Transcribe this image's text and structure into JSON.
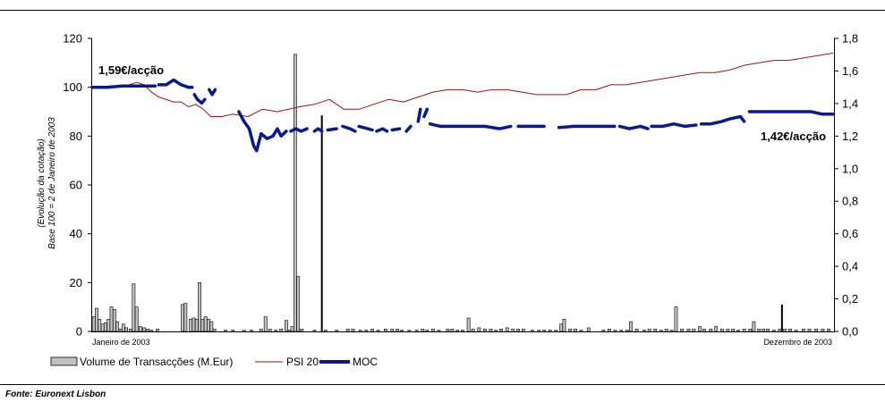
{
  "chart_data": {
    "type": "bar",
    "y_left_ticks": [
      "0",
      "20",
      "40",
      "60",
      "80",
      "100",
      "120"
    ],
    "y_left_range": [
      0,
      120
    ],
    "y_right_ticks": [
      "0,0",
      "0,2",
      "0,4",
      "0,6",
      "0,8",
      "1,0",
      "1,2",
      "1,4",
      "1,6",
      "1,8"
    ],
    "y_right_range": [
      0,
      1.8
    ],
    "y_left_label_line1": "(Evolução da cotação)",
    "y_left_label_line2": "Base 100 = 2 de Janeiro de 2003",
    "x_start_label": "Janeiro de 2003",
    "x_end_label": "Dezembro de 2003",
    "annotation_start": "1,59€/acção",
    "annotation_end": "1,42€/acção",
    "legend": [
      "Volume de Transacções (M.Eur)",
      "PSI 20",
      "MOC"
    ],
    "source": "Fonte: Euronext Lisbon",
    "colors": {
      "psi20": "#8b1a1a",
      "moc": "#0a1a8c",
      "bars": "#c0c0c0"
    },
    "series": [
      {
        "name": "Volume de Transacções (M.Eur)",
        "axis": "left",
        "points": [
          [
            0.002,
            6
          ],
          [
            0.006,
            9.5
          ],
          [
            0.01,
            5
          ],
          [
            0.014,
            3
          ],
          [
            0.018,
            3.5
          ],
          [
            0.022,
            5
          ],
          [
            0.026,
            10
          ],
          [
            0.03,
            9
          ],
          [
            0.034,
            4
          ],
          [
            0.038,
            1
          ],
          [
            0.042,
            3
          ],
          [
            0.046,
            1.5
          ],
          [
            0.052,
            1
          ],
          [
            0.056,
            19.5
          ],
          [
            0.06,
            10
          ],
          [
            0.065,
            2
          ],
          [
            0.07,
            1.5
          ],
          [
            0.075,
            1
          ],
          [
            0.08,
            0.5
          ],
          [
            0.088,
            1
          ],
          [
            0.122,
            11
          ],
          [
            0.126,
            11.5
          ],
          [
            0.133,
            5
          ],
          [
            0.137,
            5.5
          ],
          [
            0.141,
            5
          ],
          [
            0.145,
            20
          ],
          [
            0.149,
            5
          ],
          [
            0.153,
            6
          ],
          [
            0.157,
            5
          ],
          [
            0.161,
            4
          ],
          [
            0.165,
            1
          ],
          [
            0.18,
            0.5
          ],
          [
            0.19,
            0.5
          ],
          [
            0.205,
            0.5
          ],
          [
            0.215,
            0.5
          ],
          [
            0.228,
            1
          ],
          [
            0.234,
            6
          ],
          [
            0.24,
            1
          ],
          [
            0.248,
            0.5
          ],
          [
            0.255,
            1
          ],
          [
            0.262,
            4.5
          ],
          [
            0.266,
            0.5
          ],
          [
            0.27,
            2
          ],
          [
            0.274,
            113.5
          ],
          [
            0.278,
            22.5
          ],
          [
            0.283,
            1
          ],
          [
            0.3,
            0.5
          ],
          [
            0.315,
            0.5
          ],
          [
            0.33,
            0.5
          ],
          [
            0.345,
            1
          ],
          [
            0.352,
            1
          ],
          [
            0.362,
            0.5
          ],
          [
            0.37,
            0.5
          ],
          [
            0.378,
            1
          ],
          [
            0.386,
            0.5
          ],
          [
            0.396,
            1
          ],
          [
            0.405,
            1
          ],
          [
            0.412,
            1
          ],
          [
            0.418,
            0.5
          ],
          [
            0.428,
            0.5
          ],
          [
            0.438,
            0.5
          ],
          [
            0.446,
            1
          ],
          [
            0.452,
            0.5
          ],
          [
            0.46,
            1
          ],
          [
            0.468,
            0.5
          ],
          [
            0.48,
            1
          ],
          [
            0.486,
            1
          ],
          [
            0.493,
            0.5
          ],
          [
            0.5,
            0.5
          ],
          [
            0.508,
            5.5
          ],
          [
            0.514,
            1
          ],
          [
            0.522,
            1.5
          ],
          [
            0.53,
            1
          ],
          [
            0.538,
            1
          ],
          [
            0.545,
            0.5
          ],
          [
            0.552,
            1
          ],
          [
            0.56,
            1.5
          ],
          [
            0.568,
            1
          ],
          [
            0.575,
            1
          ],
          [
            0.582,
            1
          ],
          [
            0.594,
            0.5
          ],
          [
            0.603,
            0.5
          ],
          [
            0.61,
            0.5
          ],
          [
            0.618,
            0.5
          ],
          [
            0.626,
            0.5
          ],
          [
            0.633,
            3
          ],
          [
            0.637,
            5
          ],
          [
            0.645,
            1
          ],
          [
            0.652,
            1
          ],
          [
            0.66,
            0.5
          ],
          [
            0.67,
            1.5
          ],
          [
            0.69,
            0.5
          ],
          [
            0.698,
            1
          ],
          [
            0.706,
            0.5
          ],
          [
            0.714,
            0.5
          ],
          [
            0.722,
            0.5
          ],
          [
            0.727,
            4
          ],
          [
            0.735,
            1
          ],
          [
            0.745,
            0.5
          ],
          [
            0.752,
            1
          ],
          [
            0.76,
            1
          ],
          [
            0.768,
            0.5
          ],
          [
            0.775,
            1
          ],
          [
            0.782,
            0.5
          ],
          [
            0.788,
            10
          ],
          [
            0.796,
            1
          ],
          [
            0.805,
            1
          ],
          [
            0.812,
            1
          ],
          [
            0.82,
            2
          ],
          [
            0.826,
            1
          ],
          [
            0.835,
            1
          ],
          [
            0.842,
            2
          ],
          [
            0.85,
            1
          ],
          [
            0.858,
            1
          ],
          [
            0.865,
            1
          ],
          [
            0.872,
            0.5
          ],
          [
            0.88,
            1
          ],
          [
            0.888,
            1
          ],
          [
            0.893,
            4
          ],
          [
            0.9,
            1
          ],
          [
            0.906,
            1
          ],
          [
            0.912,
            1
          ],
          [
            0.92,
            0.5
          ],
          [
            0.928,
            1
          ],
          [
            0.935,
            1
          ],
          [
            0.942,
            1
          ],
          [
            0.95,
            0.5
          ],
          [
            0.96,
            1
          ],
          [
            0.968,
            1
          ],
          [
            0.977,
            1
          ],
          [
            0.986,
            1
          ],
          [
            0.994,
            1
          ]
        ]
      },
      {
        "name": "Volume de Transacções (M.Eur) dark",
        "axis": "left",
        "points": [
          [
            0.31,
            88.5
          ],
          [
            0.931,
            11
          ]
        ]
      },
      {
        "name": "PSI 20",
        "axis": "left",
        "points": [
          [
            0.0,
            100
          ],
          [
            0.03,
            100
          ],
          [
            0.05,
            101
          ],
          [
            0.06,
            102
          ],
          [
            0.07,
            101
          ],
          [
            0.08,
            98
          ],
          [
            0.09,
            96
          ],
          [
            0.11,
            94
          ],
          [
            0.12,
            94
          ],
          [
            0.13,
            92
          ],
          [
            0.14,
            93
          ],
          [
            0.15,
            91
          ],
          [
            0.16,
            88
          ],
          [
            0.175,
            88
          ],
          [
            0.19,
            89
          ],
          [
            0.21,
            88
          ],
          [
            0.23,
            91
          ],
          [
            0.25,
            90
          ],
          [
            0.265,
            91
          ],
          [
            0.28,
            92
          ],
          [
            0.3,
            93
          ],
          [
            0.32,
            95
          ],
          [
            0.34,
            91
          ],
          [
            0.36,
            91
          ],
          [
            0.38,
            93
          ],
          [
            0.4,
            95
          ],
          [
            0.42,
            94
          ],
          [
            0.44,
            96
          ],
          [
            0.46,
            98
          ],
          [
            0.48,
            99
          ],
          [
            0.5,
            99
          ],
          [
            0.52,
            98
          ],
          [
            0.54,
            99
          ],
          [
            0.56,
            99
          ],
          [
            0.58,
            98
          ],
          [
            0.6,
            97
          ],
          [
            0.62,
            97
          ],
          [
            0.64,
            97
          ],
          [
            0.66,
            99
          ],
          [
            0.68,
            99
          ],
          [
            0.7,
            101
          ],
          [
            0.72,
            101
          ],
          [
            0.74,
            102
          ],
          [
            0.76,
            103
          ],
          [
            0.78,
            104
          ],
          [
            0.8,
            105
          ],
          [
            0.82,
            106
          ],
          [
            0.84,
            106
          ],
          [
            0.86,
            107
          ],
          [
            0.88,
            109
          ],
          [
            0.9,
            110
          ],
          [
            0.92,
            111
          ],
          [
            0.94,
            111
          ],
          [
            0.96,
            112
          ],
          [
            0.98,
            113
          ],
          [
            1.0,
            114
          ]
        ]
      },
      {
        "name": "MOC",
        "axis": "left",
        "segments": [
          [
            [
              0.0,
              100
            ],
            [
              0.02,
              100
            ],
            [
              0.04,
              100.5
            ],
            [
              0.06,
              100.5
            ],
            [
              0.085,
              100.5
            ]
          ],
          [
            [
              0.09,
              101
            ],
            [
              0.1,
              101
            ],
            [
              0.11,
              103
            ],
            [
              0.12,
              101
            ],
            [
              0.13,
              100
            ],
            [
              0.135,
              100
            ]
          ],
          [
            [
              0.138,
              97
            ],
            [
              0.142,
              95
            ],
            [
              0.148,
              93.5
            ],
            [
              0.152,
              95
            ]
          ],
          [
            [
              0.158,
              99
            ],
            [
              0.162,
              97
            ],
            [
              0.166,
              99
            ]
          ],
          [
            [
              0.198,
              90
            ],
            [
              0.205,
              86
            ],
            [
              0.212,
              83
            ],
            [
              0.218,
              76
            ],
            [
              0.222,
              74
            ],
            [
              0.228,
              81
            ],
            [
              0.236,
              79
            ],
            [
              0.244,
              80
            ],
            [
              0.25,
              83
            ],
            [
              0.255,
              80
            ],
            [
              0.262,
              82
            ]
          ],
          [
            [
              0.268,
              82
            ],
            [
              0.275,
              83
            ],
            [
              0.282,
              82
            ],
            [
              0.29,
              83
            ]
          ],
          [
            [
              0.3,
              82
            ],
            [
              0.305,
              83
            ],
            [
              0.31,
              82
            ]
          ],
          [
            [
              0.318,
              82.5
            ],
            [
              0.33,
              83
            ]
          ],
          [
            [
              0.338,
              84
            ],
            [
              0.348,
              83
            ],
            [
              0.355,
              82
            ]
          ],
          [
            [
              0.36,
              84
            ],
            [
              0.372,
              83
            ],
            [
              0.378,
              82.5
            ]
          ],
          [
            [
              0.384,
              82
            ],
            [
              0.392,
              83
            ],
            [
              0.398,
              82
            ]
          ],
          [
            [
              0.405,
              82.5
            ],
            [
              0.415,
              83
            ]
          ],
          [
            [
              0.424,
              82
            ],
            [
              0.43,
              84
            ]
          ],
          [
            [
              0.44,
              86
            ],
            [
              0.443,
              91
            ]
          ],
          [
            [
              0.448,
              88
            ],
            [
              0.452,
              91
            ]
          ],
          [
            [
              0.456,
              85
            ],
            [
              0.47,
              84
            ],
            [
              0.49,
              84
            ],
            [
              0.51,
              84
            ],
            [
              0.53,
              84
            ],
            [
              0.55,
              83
            ],
            [
              0.565,
              84
            ]
          ],
          [
            [
              0.575,
              84
            ],
            [
              0.59,
              84
            ],
            [
              0.61,
              84
            ]
          ],
          [
            [
              0.63,
              83.5
            ],
            [
              0.65,
              84
            ],
            [
              0.67,
              84
            ],
            [
              0.69,
              84
            ],
            [
              0.705,
              84
            ]
          ],
          [
            [
              0.712,
              84
            ],
            [
              0.725,
              83
            ],
            [
              0.74,
              84
            ],
            [
              0.75,
              83
            ]
          ],
          [
            [
              0.755,
              84
            ],
            [
              0.77,
              84
            ],
            [
              0.785,
              85
            ],
            [
              0.8,
              84
            ],
            [
              0.815,
              84.5
            ]
          ],
          [
            [
              0.822,
              85
            ],
            [
              0.835,
              85
            ],
            [
              0.85,
              86
            ],
            [
              0.86,
              87
            ],
            [
              0.875,
              88
            ],
            [
              0.88,
              86
            ]
          ],
          [
            [
              0.887,
              90
            ],
            [
              0.897,
              90
            ],
            [
              0.91,
              90
            ],
            [
              0.925,
              90
            ],
            [
              0.94,
              90
            ],
            [
              0.955,
              90
            ],
            [
              0.97,
              90
            ],
            [
              0.985,
              89
            ],
            [
              1.0,
              89
            ]
          ]
        ]
      }
    ]
  }
}
